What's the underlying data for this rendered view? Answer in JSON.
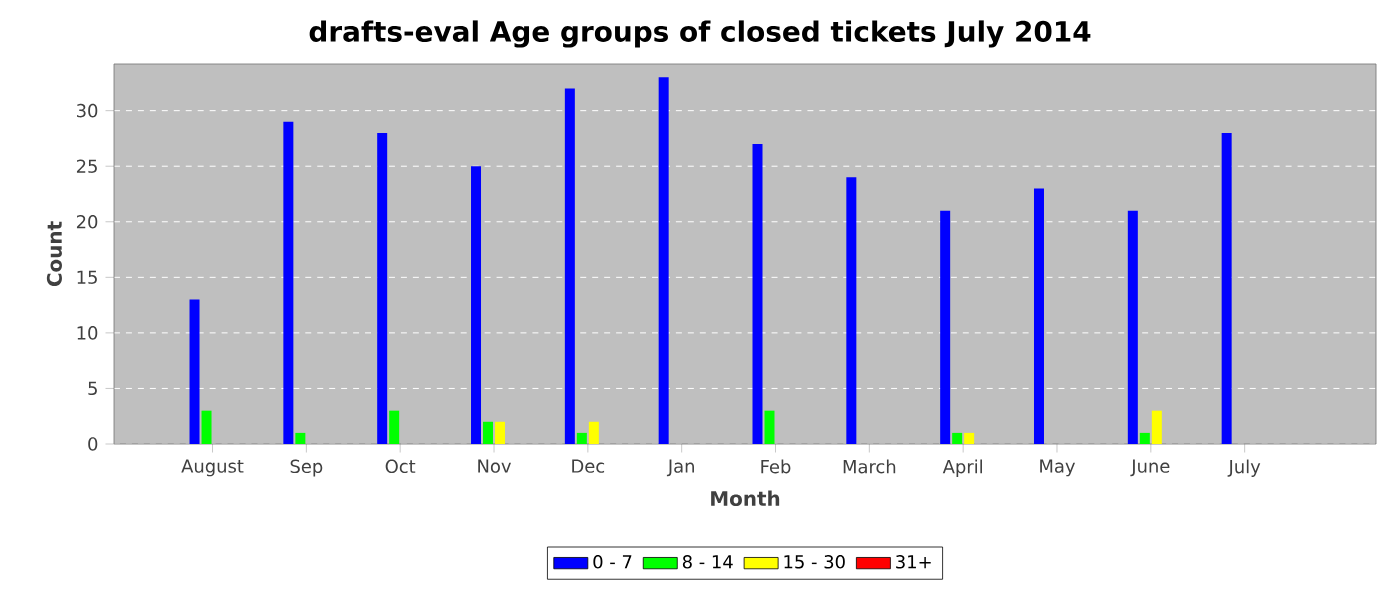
{
  "chart_data": {
    "type": "bar",
    "title": "drafts-eval Age groups of closed tickets July 2014",
    "xlabel": "Month",
    "ylabel": "Count",
    "categories": [
      "August",
      "Sep",
      "Oct",
      "Nov",
      "Dec",
      "Jan",
      "Feb",
      "March",
      "April",
      "May",
      "June",
      "July"
    ],
    "series": [
      {
        "name": "0 - 7",
        "color": "#0000ff",
        "values": [
          13,
          29,
          28,
          25,
          32,
          33,
          27,
          24,
          21,
          23,
          21,
          28
        ]
      },
      {
        "name": "8 - 14",
        "color": "#00ff00",
        "values": [
          3,
          1,
          3,
          2,
          1,
          0,
          3,
          0,
          1,
          0,
          1,
          0
        ]
      },
      {
        "name": "15 - 30",
        "color": "#ffff00",
        "values": [
          0,
          0,
          0,
          2,
          2,
          0,
          0,
          0,
          1,
          0,
          3,
          0
        ]
      },
      {
        "name": "31+",
        "color": "#ff0000",
        "values": [
          0,
          0,
          0,
          0,
          0,
          0,
          0,
          0,
          0,
          0,
          0,
          0
        ]
      }
    ],
    "ylim": [
      0,
      34.2
    ],
    "yticks": [
      0,
      5,
      10,
      15,
      20,
      25,
      30
    ],
    "grid": "y",
    "legend": "bottom"
  }
}
